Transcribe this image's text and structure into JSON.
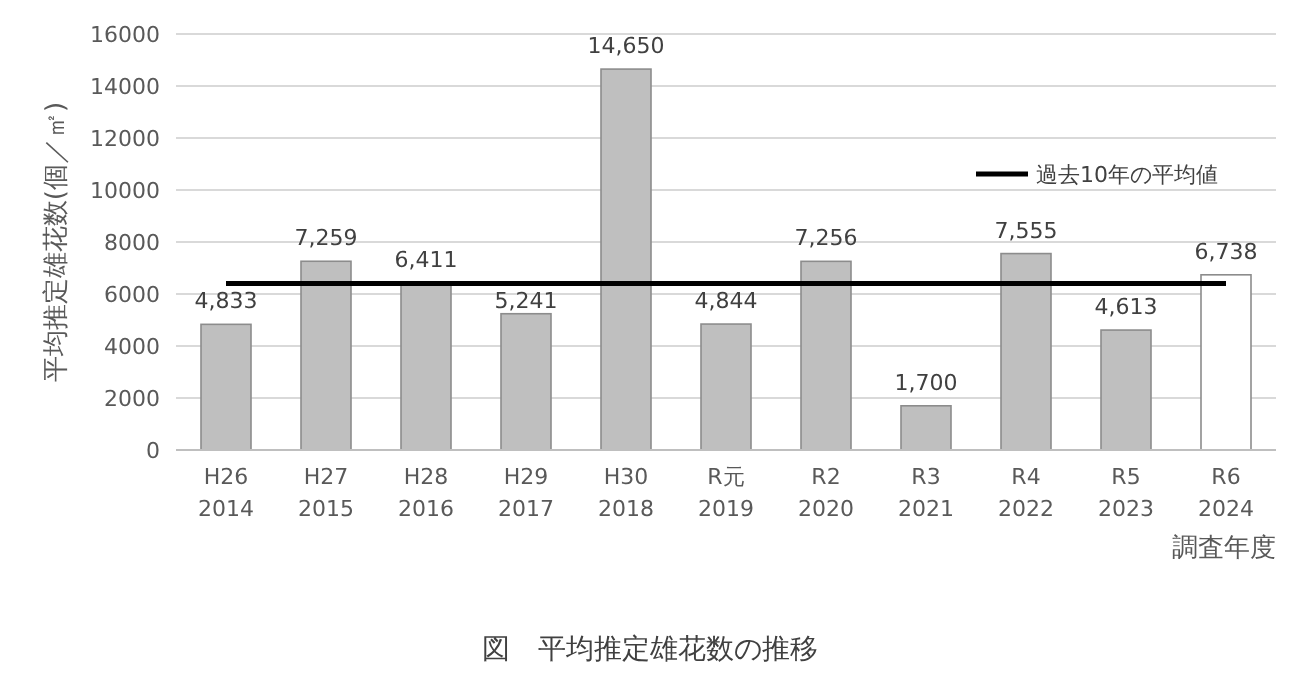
{
  "chart_data": {
    "type": "bar",
    "ylabel": "平均推定雄花数(個／㎡)",
    "xlabel": "調査年度",
    "categories": [
      "H26\n2014",
      "H27\n2015",
      "H28\n2016",
      "H29\n2017",
      "H30\n2018",
      "R元\n2019",
      "R2\n2020",
      "R3\n2021",
      "R4\n2022",
      "R5\n2023",
      "R6\n2024"
    ],
    "series": [
      {
        "colors": [
          "#bfbfbf",
          "#bfbfbf",
          "#bfbfbf",
          "#bfbfbf",
          "#bfbfbf",
          "#bfbfbf",
          "#bfbfbf",
          "#bfbfbf",
          "#bfbfbf",
          "#bfbfbf",
          "#ffffff"
        ],
        "values": [
          4833,
          7259,
          6411,
          5241,
          14650,
          4844,
          7256,
          1700,
          7555,
          4613,
          6738
        ],
        "value_labels": [
          "4,833",
          "7,259",
          "6,411",
          "5,241",
          "14,650",
          "4,844",
          "7,256",
          "1,700",
          "7,555",
          "4,613",
          "6,738"
        ]
      },
      {
        "type": "line",
        "name": "過去10年の平均値",
        "color": "#000000",
        "values": [
          6400,
          6400,
          6400,
          6400,
          6400,
          6400,
          6400,
          6400,
          6400,
          6400,
          6400
        ]
      }
    ],
    "ylim": [
      0,
      16000
    ],
    "yticks": [
      0,
      2000,
      4000,
      6000,
      8000,
      10000,
      12000,
      14000,
      16000
    ],
    "grid": "y",
    "legend": "top right",
    "marker": "none",
    "annotations": [
      "図　平均推定雄花数の推移"
    ]
  }
}
